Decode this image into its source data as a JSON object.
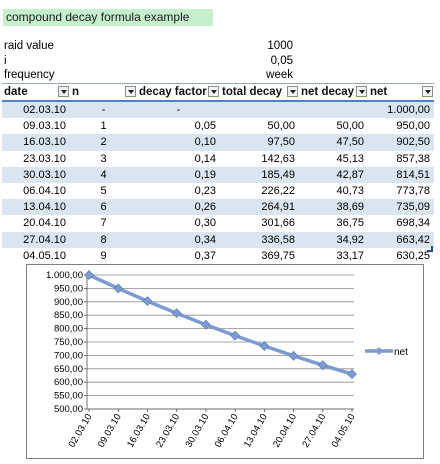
{
  "title": "compound decay formula example",
  "params": [
    {
      "label": "raid value",
      "value": "1000"
    },
    {
      "label": "i",
      "value": "0,05"
    },
    {
      "label": "frequency",
      "value": "week"
    }
  ],
  "table": {
    "headers": [
      "date",
      "n",
      "decay factor",
      "total decay",
      "net decay",
      "net"
    ],
    "rows": [
      [
        "02.03.10",
        "-",
        "-",
        "",
        "",
        "1.000,00"
      ],
      [
        "09.03.10",
        "1",
        "0,05",
        "50,00",
        "50,00",
        "950,00"
      ],
      [
        "16.03.10",
        "2",
        "0,10",
        "97,50",
        "47,50",
        "902,50"
      ],
      [
        "23.03.10",
        "3",
        "0,14",
        "142,63",
        "45,13",
        "857,38"
      ],
      [
        "30.03.10",
        "4",
        "0,19",
        "185,49",
        "42,87",
        "814,51"
      ],
      [
        "06.04.10",
        "5",
        "0,23",
        "226,22",
        "40,73",
        "773,78"
      ],
      [
        "13.04.10",
        "6",
        "0,26",
        "264,91",
        "38,69",
        "735,09"
      ],
      [
        "20.04.10",
        "7",
        "0,30",
        "301,66",
        "36,75",
        "698,34"
      ],
      [
        "27.04.10",
        "8",
        "0,34",
        "336,58",
        "34,92",
        "663,42"
      ],
      [
        "04.05.10",
        "9",
        "0,37",
        "369,75",
        "33,17",
        "630,25"
      ]
    ]
  },
  "chart_data": {
    "type": "line",
    "categories": [
      "02.03.10",
      "09.03.10",
      "16.03.10",
      "23.03.10",
      "30.03.10",
      "06.04.10",
      "13.04.10",
      "20.04.10",
      "27.04.10",
      "04.05.10"
    ],
    "series": [
      {
        "name": "net",
        "values": [
          1000.0,
          950.0,
          902.5,
          857.38,
          814.51,
          773.78,
          735.09,
          698.34,
          663.42,
          630.25
        ],
        "color": "#7b9bd1"
      }
    ],
    "ylim": [
      500,
      1000
    ],
    "ytick_labels": [
      "1.000,00",
      "950,00",
      "900,00",
      "850,00",
      "800,00",
      "750,00",
      "700,00",
      "650,00",
      "600,00",
      "550,00",
      "500,00"
    ],
    "grid": true,
    "legend": "right"
  }
}
